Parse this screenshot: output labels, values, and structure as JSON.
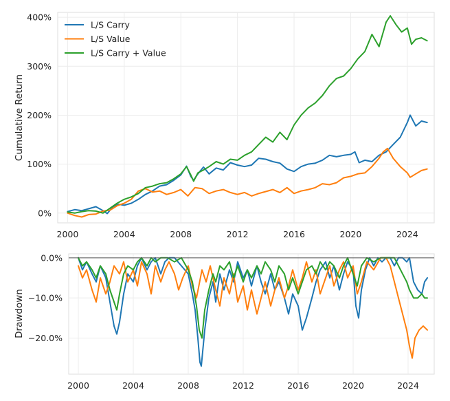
{
  "chart_data": [
    {
      "type": "line",
      "xlabel": "",
      "ylabel": "Cumulative Return",
      "xlim": [
        1999.3,
        2025.9
      ],
      "ylim": [
        -20,
        410
      ],
      "x_ticks": [
        2000,
        2004,
        2008,
        2012,
        2016,
        2020,
        2024
      ],
      "x_tick_labels": [
        "2000",
        "2004",
        "2008",
        "2012",
        "2016",
        "2020",
        "2024"
      ],
      "y_ticks": [
        0,
        100,
        200,
        300,
        400
      ],
      "y_tick_labels": [
        "0%",
        "100%",
        "200%",
        "300%",
        "400%"
      ],
      "grid": true,
      "legend_position": "top-left",
      "series": [
        {
          "name": "L/S Carry",
          "color": "#1f77b4",
          "x": [
            2000.0,
            2000.5,
            2001.0,
            2001.5,
            2002.0,
            2002.5,
            2002.8,
            2003.2,
            2003.6,
            2004.0,
            2004.5,
            2005.0,
            2005.5,
            2006.0,
            2006.5,
            2007.0,
            2007.5,
            2008.0,
            2008.4,
            2008.7,
            2008.9,
            2009.2,
            2009.6,
            2010.0,
            2010.5,
            2011.0,
            2011.5,
            2012.0,
            2012.5,
            2013.0,
            2013.5,
            2014.0,
            2014.5,
            2015.0,
            2015.5,
            2016.0,
            2016.5,
            2017.0,
            2017.5,
            2018.0,
            2018.5,
            2019.0,
            2019.5,
            2020.0,
            2020.3,
            2020.6,
            2021.0,
            2021.5,
            2022.0,
            2022.5,
            2023.0,
            2023.5,
            2024.0,
            2024.2,
            2024.6,
            2025.0,
            2025.4
          ],
          "values": [
            3,
            7,
            5,
            9,
            13,
            5,
            -1,
            13,
            18,
            16,
            20,
            28,
            38,
            45,
            55,
            58,
            67,
            78,
            96,
            75,
            67,
            80,
            94,
            80,
            92,
            88,
            103,
            98,
            95,
            98,
            112,
            110,
            105,
            102,
            90,
            85,
            95,
            100,
            102,
            108,
            118,
            115,
            118,
            120,
            125,
            103,
            108,
            105,
            118,
            125,
            140,
            155,
            185,
            200,
            178,
            188,
            185
          ]
        },
        {
          "name": "L/S Value",
          "color": "#ff7f0e",
          "x": [
            2000.0,
            2000.5,
            2001.0,
            2001.5,
            2002.0,
            2002.5,
            2003.0,
            2003.5,
            2004.0,
            2004.5,
            2005.0,
            2005.5,
            2006.0,
            2006.5,
            2007.0,
            2007.5,
            2008.0,
            2008.5,
            2009.0,
            2009.5,
            2010.0,
            2010.5,
            2011.0,
            2011.5,
            2012.0,
            2012.5,
            2013.0,
            2013.5,
            2014.0,
            2014.5,
            2015.0,
            2015.5,
            2016.0,
            2016.5,
            2017.0,
            2017.5,
            2018.0,
            2018.5,
            2019.0,
            2019.5,
            2020.0,
            2020.5,
            2021.0,
            2021.5,
            2022.0,
            2022.3,
            2022.6,
            2023.0,
            2023.5,
            2024.0,
            2024.2,
            2024.6,
            2025.0,
            2025.4
          ],
          "values": [
            0,
            -5,
            -8,
            -3,
            -2,
            4,
            6,
            15,
            20,
            28,
            45,
            50,
            43,
            45,
            38,
            42,
            48,
            35,
            52,
            50,
            40,
            45,
            48,
            42,
            38,
            42,
            35,
            40,
            44,
            48,
            42,
            52,
            40,
            45,
            48,
            52,
            60,
            58,
            62,
            72,
            75,
            80,
            82,
            95,
            112,
            125,
            132,
            112,
            95,
            82,
            73,
            80,
            87,
            90
          ]
        },
        {
          "name": "L/S Carry + Value",
          "color": "#2ca02c",
          "x": [
            2000.0,
            2000.5,
            2001.0,
            2001.5,
            2002.0,
            2002.5,
            2003.0,
            2003.5,
            2004.0,
            2004.5,
            2005.0,
            2005.5,
            2006.0,
            2006.5,
            2007.0,
            2007.5,
            2008.0,
            2008.4,
            2008.7,
            2008.9,
            2009.2,
            2009.6,
            2010.0,
            2010.5,
            2011.0,
            2011.5,
            2012.0,
            2012.5,
            2013.0,
            2013.5,
            2014.0,
            2014.5,
            2015.0,
            2015.5,
            2016.0,
            2016.5,
            2017.0,
            2017.5,
            2018.0,
            2018.5,
            2019.0,
            2019.5,
            2020.0,
            2020.5,
            2021.0,
            2021.5,
            2022.0,
            2022.5,
            2022.8,
            2023.2,
            2023.6,
            2024.0,
            2024.3,
            2024.6,
            2025.0,
            2025.4
          ],
          "values": [
            2,
            0,
            3,
            5,
            4,
            0,
            10,
            20,
            28,
            33,
            40,
            52,
            55,
            60,
            62,
            70,
            80,
            95,
            78,
            65,
            82,
            88,
            95,
            105,
            100,
            110,
            108,
            118,
            125,
            140,
            155,
            145,
            165,
            150,
            180,
            200,
            215,
            225,
            240,
            260,
            275,
            280,
            295,
            315,
            330,
            365,
            340,
            390,
            403,
            385,
            370,
            378,
            345,
            355,
            358,
            352
          ]
        }
      ]
    },
    {
      "type": "line",
      "xlabel": "",
      "ylabel": "Drawdown",
      "xlim": [
        1999.3,
        2025.9
      ],
      "ylim": [
        -29,
        1
      ],
      "x_ticks": [
        2000,
        2004,
        2008,
        2012,
        2016,
        2020,
        2024
      ],
      "x_tick_labels": [
        "2000",
        "2004",
        "2008",
        "2012",
        "2016",
        "2020",
        "2024"
      ],
      "y_ticks": [
        0,
        -10,
        -20
      ],
      "y_tick_labels": [
        "0.0%",
        "−10.0%",
        "−20.0%"
      ],
      "grid": true,
      "series": [
        {
          "name": "L/S Carry",
          "color": "#1f77b4",
          "x": [
            2000.0,
            2000.3,
            2000.6,
            2001.0,
            2001.3,
            2001.6,
            2002.0,
            2002.3,
            2002.6,
            2002.8,
            2003.0,
            2003.3,
            2003.6,
            2004.0,
            2004.3,
            2004.6,
            2005.0,
            2005.3,
            2005.6,
            2006.0,
            2006.3,
            2006.6,
            2007.0,
            2007.5,
            2008.0,
            2008.3,
            2008.5,
            2008.7,
            2008.85,
            2008.95,
            2009.2,
            2009.5,
            2009.8,
            2010.0,
            2010.3,
            2010.6,
            2011.0,
            2011.3,
            2011.6,
            2012.0,
            2012.3,
            2012.6,
            2013.0,
            2013.3,
            2013.6,
            2014.0,
            2014.3,
            2014.6,
            2015.0,
            2015.3,
            2015.6,
            2016.0,
            2016.3,
            2016.6,
            2017.0,
            2017.3,
            2017.6,
            2018.0,
            2018.3,
            2018.6,
            2019.0,
            2019.3,
            2019.6,
            2020.0,
            2020.2,
            2020.4,
            2020.6,
            2020.9,
            2021.2,
            2021.5,
            2021.8,
            2022.1,
            2022.4,
            2022.7,
            2023.0,
            2023.3,
            2023.6,
            2023.9,
            2024.1,
            2024.4,
            2024.7,
            2025.0,
            2025.2,
            2025.4
          ],
          "values": [
            0,
            -3,
            -1,
            -4,
            -6,
            -2,
            -5,
            -11,
            -17,
            -19,
            -16,
            -9,
            -4,
            -6,
            -2,
            0,
            -3,
            -1,
            0,
            -4,
            -1,
            0,
            0,
            -2,
            -4,
            -9,
            -13,
            -20,
            -26,
            -27,
            -18,
            -10,
            -6,
            -11,
            -4,
            -8,
            -3,
            -6,
            -1,
            -5,
            -3,
            -7,
            -2,
            -6,
            -9,
            -4,
            -8,
            -6,
            -10,
            -14,
            -9,
            -12,
            -18,
            -15,
            -10,
            -6,
            -3,
            -1,
            -5,
            -2,
            -8,
            -4,
            -1,
            -3,
            -12,
            -15,
            -8,
            -3,
            0,
            -2,
            0,
            -1,
            0,
            0,
            -2,
            0,
            0,
            -1,
            0,
            -6,
            -8,
            -9,
            -6,
            -5
          ]
        },
        {
          "name": "L/S Value",
          "color": "#ff7f0e",
          "x": [
            2000.0,
            2000.3,
            2000.6,
            2001.0,
            2001.3,
            2001.6,
            2002.0,
            2002.3,
            2002.6,
            2003.0,
            2003.3,
            2003.6,
            2004.0,
            2004.3,
            2004.6,
            2005.0,
            2005.3,
            2005.6,
            2006.0,
            2006.3,
            2006.6,
            2007.0,
            2007.3,
            2007.6,
            2008.0,
            2008.3,
            2008.6,
            2009.0,
            2009.3,
            2009.6,
            2010.0,
            2010.3,
            2010.6,
            2011.0,
            2011.3,
            2011.6,
            2012.0,
            2012.3,
            2012.6,
            2013.0,
            2013.3,
            2013.6,
            2014.0,
            2014.3,
            2014.6,
            2015.0,
            2015.3,
            2015.6,
            2016.0,
            2016.3,
            2016.6,
            2017.0,
            2017.3,
            2017.6,
            2018.0,
            2018.3,
            2018.6,
            2019.0,
            2019.3,
            2019.6,
            2020.0,
            2020.3,
            2020.6,
            2021.0,
            2021.5,
            2022.0,
            2022.4,
            2022.7,
            2023.0,
            2023.3,
            2023.6,
            2023.9,
            2024.1,
            2024.3,
            2024.5,
            2024.8,
            2025.1,
            2025.4
          ],
          "values": [
            -2,
            -5,
            -3,
            -8,
            -11,
            -5,
            -9,
            -6,
            -2,
            -4,
            -1,
            -6,
            -3,
            -7,
            -1,
            -4,
            -9,
            -2,
            -6,
            -3,
            -1,
            -4,
            -8,
            -5,
            -2,
            -7,
            -10,
            -3,
            -6,
            -2,
            -8,
            -12,
            -5,
            -9,
            -4,
            -11,
            -7,
            -13,
            -8,
            -14,
            -10,
            -6,
            -12,
            -8,
            -5,
            -10,
            -7,
            -3,
            -8,
            -5,
            -1,
            -6,
            -3,
            -9,
            -5,
            -2,
            -7,
            -3,
            -1,
            -5,
            -2,
            -9,
            -6,
            -1,
            -3,
            0,
            0,
            -2,
            -6,
            -10,
            -14,
            -18,
            -22,
            -25,
            -20,
            -18,
            -17,
            -18
          ]
        },
        {
          "name": "L/S Carry + Value",
          "color": "#2ca02c",
          "x": [
            2000.0,
            2000.3,
            2000.6,
            2001.0,
            2001.3,
            2001.6,
            2002.0,
            2002.3,
            2002.6,
            2002.8,
            2003.0,
            2003.3,
            2003.6,
            2004.0,
            2004.3,
            2004.6,
            2005.0,
            2005.3,
            2005.6,
            2006.0,
            2006.5,
            2007.0,
            2007.5,
            2008.0,
            2008.3,
            2008.6,
            2008.8,
            2009.0,
            2009.2,
            2009.5,
            2009.8,
            2010.0,
            2010.3,
            2010.6,
            2011.0,
            2011.3,
            2011.6,
            2012.0,
            2012.3,
            2012.6,
            2013.0,
            2013.3,
            2013.6,
            2014.0,
            2014.3,
            2014.6,
            2015.0,
            2015.3,
            2015.6,
            2016.0,
            2016.3,
            2016.6,
            2017.0,
            2017.3,
            2017.6,
            2018.0,
            2018.3,
            2018.6,
            2019.0,
            2019.3,
            2019.6,
            2020.0,
            2020.3,
            2020.6,
            2021.0,
            2021.5,
            2022.0,
            2022.5,
            2022.8,
            2023.0,
            2023.3,
            2023.6,
            2023.9,
            2024.1,
            2024.4,
            2024.7,
            2025.0,
            2025.2,
            2025.4
          ],
          "values": [
            0,
            -2,
            -1,
            -3,
            -5,
            -2,
            -4,
            -8,
            -11,
            -13,
            -9,
            -4,
            -2,
            -3,
            -1,
            0,
            -2,
            0,
            -1,
            0,
            0,
            -1,
            0,
            -3,
            -6,
            -12,
            -18,
            -20,
            -13,
            -8,
            -4,
            -6,
            -2,
            -3,
            -1,
            -5,
            -2,
            -6,
            -3,
            -5,
            -2,
            -4,
            -1,
            -3,
            -6,
            -2,
            -4,
            -8,
            -5,
            -9,
            -6,
            -3,
            -2,
            -4,
            -1,
            -3,
            -1,
            -2,
            -5,
            -2,
            0,
            -4,
            -7,
            -2,
            0,
            -1,
            0,
            0,
            0,
            0,
            -2,
            -4,
            -6,
            -8,
            -10,
            -10,
            -9,
            -10,
            -10
          ]
        }
      ]
    }
  ]
}
